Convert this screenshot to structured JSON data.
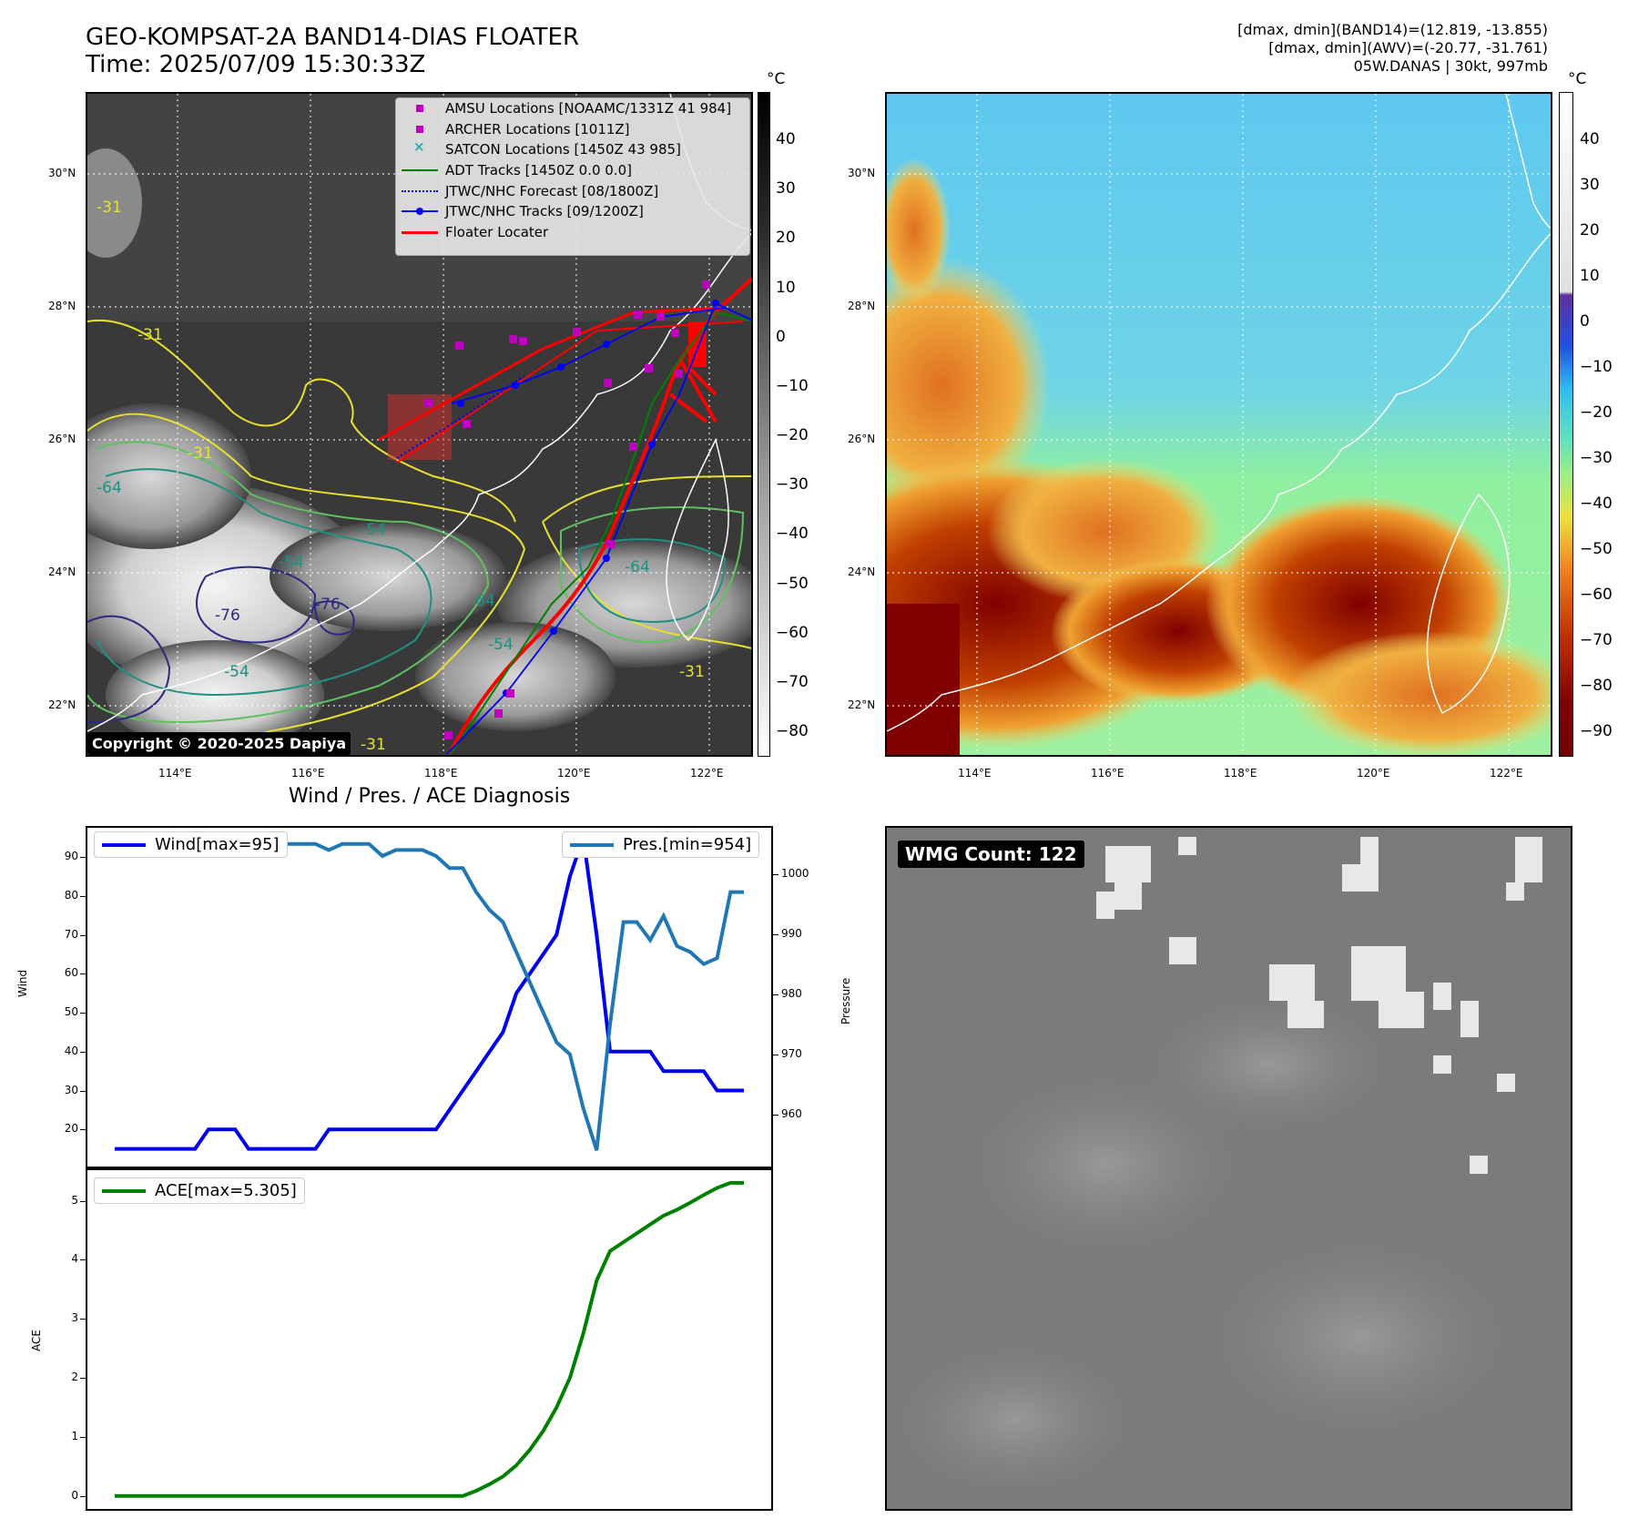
{
  "header": {
    "title_line1": "GEO-KOMPSAT-2A BAND14-DIAS FLOATER",
    "title_line2": "Time: 2025/07/09 15:30:33Z",
    "info_line1": "[dmax, dmin](BAND14)=(12.819, -13.855)",
    "info_line2": "[dmax, dmin](AWV)=(-20.77, -31.761)",
    "info_line3": "05W.DANAS | 30kt, 997mb"
  },
  "ir_panel": {
    "lat_labels": [
      "30°N",
      "28°N",
      "26°N",
      "24°N",
      "22°N"
    ],
    "lon_labels": [
      "114°E",
      "116°E",
      "118°E",
      "120°E",
      "122°E"
    ],
    "contour_labels": [
      "-31",
      "-31",
      "-31",
      "-64",
      "-54",
      "-54",
      "-64",
      "-76",
      "-76",
      "-54",
      "-64",
      "-54",
      "-31",
      "-31"
    ],
    "copyright": "Copyright © 2020-2025 Dapiya",
    "colorbar_unit": "°C",
    "colorbar_ticks": [
      "40",
      "30",
      "20",
      "10",
      "0",
      "−10",
      "−20",
      "−30",
      "−40",
      "−50",
      "−60",
      "−70",
      "−80"
    ],
    "legend": [
      {
        "label": "AMSU Locations [NOAAMC/1331Z 41 984]",
        "kind": "square",
        "color": "#c000c0"
      },
      {
        "label": "ARCHER Locations [1011Z]",
        "kind": "square",
        "color": "#c000c0"
      },
      {
        "label": "SATCON Locations [1450Z 43 985]",
        "kind": "x",
        "color": "#20b0b0"
      },
      {
        "label": "ADT Tracks [1450Z 0.0 0.0]",
        "kind": "line",
        "color": "#008000"
      },
      {
        "label": "JTWC/NHC Forecast [08/1800Z]",
        "kind": "dotted",
        "color": "#0000ff"
      },
      {
        "label": "JTWC/NHC Tracks [09/1200Z]",
        "kind": "linedot",
        "color": "#0000ff"
      },
      {
        "label": "Floater Locater",
        "kind": "line",
        "color": "#ff0000"
      }
    ]
  },
  "wv_panel": {
    "lat_labels": [
      "30°N",
      "28°N",
      "26°N",
      "24°N",
      "22°N"
    ],
    "lon_labels": [
      "114°E",
      "116°E",
      "118°E",
      "120°E",
      "122°E"
    ],
    "colorbar_unit": "°C",
    "colorbar_ticks": [
      "40",
      "30",
      "20",
      "10",
      "0",
      "−10",
      "−20",
      "−30",
      "−40",
      "−50",
      "−60",
      "−70",
      "−80",
      "−90"
    ]
  },
  "diag": {
    "title": "Wind / Pres. / ACE Diagnosis",
    "wind_axis_label": "Wind",
    "pres_axis_label": "Pressure",
    "ace_axis_label": "ACE",
    "wind_ticks": [
      "90",
      "80",
      "70",
      "60",
      "50",
      "40",
      "30",
      "20"
    ],
    "pres_ticks": [
      "1000",
      "990",
      "980",
      "970",
      "960"
    ],
    "ace_ticks": [
      "5",
      "4",
      "3",
      "2",
      "1",
      "0"
    ]
  },
  "wmg": {
    "label": "WMG Count: 122"
  },
  "colors": {
    "wind": "#0000ee",
    "pressure": "#1f77b4",
    "ace": "#008000"
  },
  "chart_data": [
    {
      "type": "line",
      "ylabel": "Wind",
      "ylim": [
        10,
        98
      ],
      "x": [
        0,
        1,
        2,
        3,
        4,
        5,
        6,
        7,
        8,
        9,
        10,
        11,
        12,
        13,
        14,
        15,
        16,
        17,
        18,
        19,
        20,
        21,
        22,
        23,
        24,
        25,
        26,
        27,
        28,
        29,
        30,
        31,
        32,
        33,
        34,
        35,
        36,
        37,
        38,
        39,
        40,
        41,
        42,
        43,
        44,
        45,
        46,
        47
      ],
      "series": [
        {
          "name": "Wind[max=95]",
          "values": [
            15,
            15,
            15,
            15,
            15,
            15,
            15,
            20,
            20,
            20,
            15,
            15,
            15,
            15,
            15,
            15,
            20,
            20,
            20,
            20,
            20,
            20,
            20,
            20,
            20,
            25,
            30,
            35,
            40,
            45,
            55,
            60,
            65,
            70,
            85,
            95,
            70,
            40,
            40,
            40,
            40,
            35,
            35,
            35,
            35,
            30,
            30,
            30
          ]
        },
        {
          "name": "Pres.[min=954]",
          "axis": "right",
          "ylim": [
            951,
            1008
          ],
          "values": [
            1006,
            1006,
            1006,
            1006,
            1006,
            1004,
            1004,
            1004,
            1004,
            1004,
            1004,
            1004,
            1005,
            1005,
            1005,
            1005,
            1004,
            1005,
            1005,
            1005,
            1003,
            1004,
            1004,
            1004,
            1003,
            1001,
            1001,
            997,
            994,
            992,
            987,
            982,
            977,
            972,
            970,
            961,
            954,
            975,
            992,
            992,
            989,
            993,
            988,
            987,
            985,
            986,
            997,
            997
          ]
        }
      ]
    },
    {
      "type": "line",
      "ylabel": "ACE",
      "ylim": [
        -0.25,
        5.55
      ],
      "x": [
        0,
        1,
        2,
        3,
        4,
        5,
        6,
        7,
        8,
        9,
        10,
        11,
        12,
        13,
        14,
        15,
        16,
        17,
        18,
        19,
        20,
        21,
        22,
        23,
        24,
        25,
        26,
        27,
        28,
        29,
        30,
        31,
        32,
        33,
        34,
        35,
        36,
        37,
        38,
        39,
        40,
        41,
        42,
        43,
        44,
        45,
        46,
        47
      ],
      "series": [
        {
          "name": "ACE[max=5.305]",
          "values": [
            0,
            0,
            0,
            0,
            0,
            0,
            0,
            0,
            0,
            0,
            0,
            0,
            0,
            0,
            0,
            0,
            0,
            0,
            0,
            0,
            0,
            0,
            0,
            0,
            0,
            0,
            0,
            0.09,
            0.2,
            0.33,
            0.52,
            0.78,
            1.1,
            1.5,
            2.0,
            2.75,
            3.65,
            4.15,
            4.3,
            4.45,
            4.6,
            4.75,
            4.85,
            4.97,
            5.1,
            5.22,
            5.305,
            5.305
          ]
        }
      ]
    }
  ]
}
